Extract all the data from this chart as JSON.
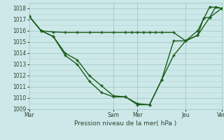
{
  "background_color": "#cce8e8",
  "grid_color": "#aacccc",
  "line_color": "#1a5c1a",
  "marker_color": "#1a5c1a",
  "title": "Pression niveau de la mer( hPa )",
  "ylim": [
    1009,
    1018.5
  ],
  "yticks": [
    1009,
    1010,
    1011,
    1012,
    1013,
    1014,
    1015,
    1016,
    1017,
    1018
  ],
  "xtick_labels": [
    "Mar",
    "Sam",
    "Mer",
    "Jeu",
    "Ven"
  ],
  "xtick_positions": [
    0,
    14,
    18,
    26,
    32
  ],
  "xlim": [
    0,
    32
  ],
  "vlines_x": [
    0,
    14,
    18,
    26,
    32
  ],
  "line1_x": [
    0,
    2,
    4,
    6,
    8,
    10,
    12,
    14,
    16,
    17,
    18,
    19,
    20,
    21,
    22,
    24,
    26,
    28,
    29,
    30,
    31,
    32
  ],
  "line1_y": [
    1017.3,
    1016.0,
    1015.9,
    1015.85,
    1015.85,
    1015.85,
    1015.85,
    1015.85,
    1015.85,
    1015.85,
    1015.85,
    1015.85,
    1015.85,
    1015.85,
    1015.85,
    1015.85,
    1015.1,
    1015.6,
    1017.15,
    1017.2,
    1018.15,
    1018.0
  ],
  "line2_x": [
    0,
    2,
    4,
    6,
    8,
    10,
    12,
    14,
    16,
    18,
    20,
    22,
    24,
    26,
    28,
    30,
    32
  ],
  "line2_y": [
    1017.3,
    1016.0,
    1015.5,
    1014.0,
    1013.4,
    1012.0,
    1011.1,
    1010.2,
    1010.1,
    1009.5,
    1009.4,
    1011.6,
    1013.8,
    1015.1,
    1016.0,
    1018.15,
    1018.0
  ],
  "line3_x": [
    0,
    2,
    4,
    6,
    8,
    10,
    12,
    14,
    16,
    18,
    20,
    22,
    24,
    26,
    28,
    30,
    32
  ],
  "line3_y": [
    1017.3,
    1016.0,
    1015.5,
    1013.8,
    1013.0,
    1011.5,
    1010.5,
    1010.1,
    1010.1,
    1009.4,
    1009.4,
    1011.6,
    1015.1,
    1015.1,
    1015.6,
    1017.2,
    1018.0
  ],
  "figsize": [
    3.2,
    2.0
  ],
  "dpi": 100
}
